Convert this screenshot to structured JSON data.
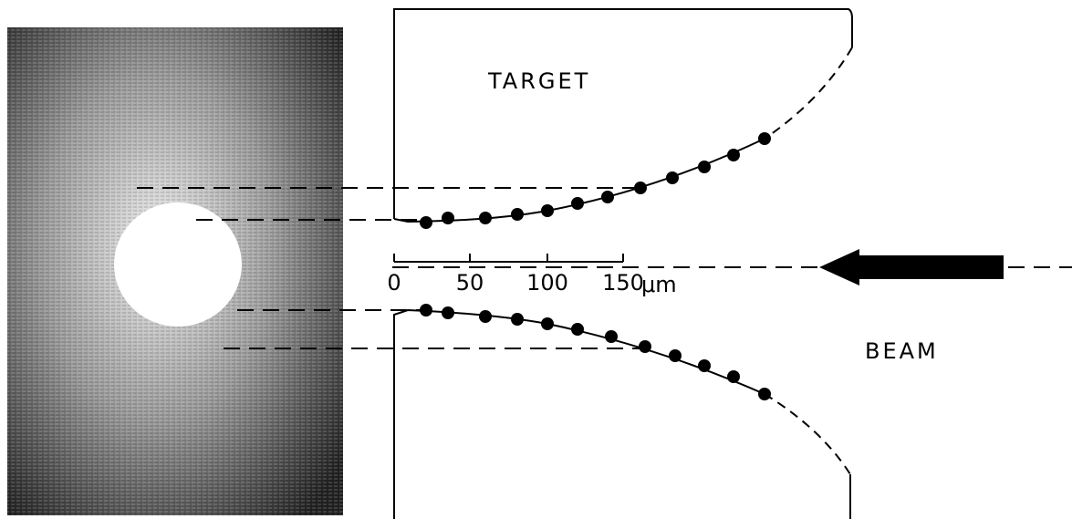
{
  "labels": {
    "target": "TARGET",
    "beam": "BEAM"
  },
  "scale": {
    "ticks": [
      "0",
      "50",
      "100",
      "150"
    ],
    "unit": "μm"
  }
}
